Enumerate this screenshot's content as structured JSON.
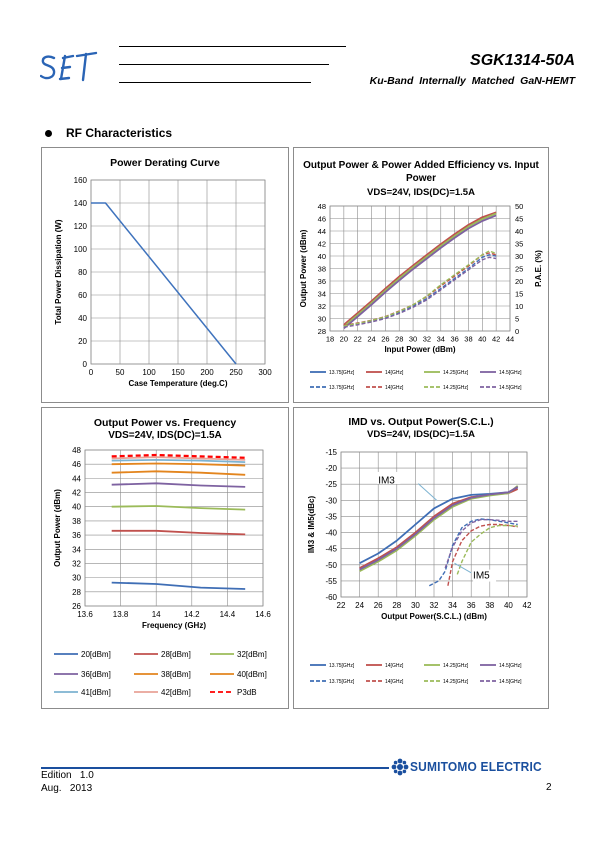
{
  "header": {
    "logo_text": "SET",
    "product": "SGK1314-50A",
    "description": "Ku-Band  Internally  Matched  GaN-HEMT"
  },
  "section_title": "RF Characteristics",
  "footer": {
    "edition_label": "Edition",
    "edition_value": "1.0",
    "date_month": "Aug.",
    "date_year": "2013",
    "brand": "SUMITOMO ELECTRIC",
    "page_number": "2"
  },
  "colors": {
    "c1": "#3f6eb5",
    "c2": "#c0504d",
    "c3": "#9bbb59",
    "c4": "#7e62a1",
    "c5": "#e3851e",
    "c6": "#7db3d1",
    "c7": "#e8a297",
    "c8": "#ff0000",
    "brand": "#1a4f9e"
  },
  "chart_data": [
    {
      "type": "line",
      "title": "Power Derating Curve",
      "xlabel": "Case Temperature (deg.C)",
      "ylabel": "Total Power Dissipation (W)",
      "xlim": [
        0,
        300
      ],
      "ylim": [
        0,
        160
      ],
      "xticks": [
        0,
        50,
        100,
        150,
        200,
        250,
        300
      ],
      "yticks": [
        0,
        20,
        40,
        60,
        80,
        100,
        120,
        140,
        160
      ],
      "series": [
        {
          "x": [
            0,
            25,
            250
          ],
          "y": [
            140,
            140,
            0
          ]
        }
      ]
    },
    {
      "type": "line",
      "title": "Output Power & Power Added Efficiency vs. Input Power",
      "subtitle": "VDS=24V, IDS(DC)=1.5A",
      "xlabel": "Input Power (dBm)",
      "ylabel": "Output Power (dBm)",
      "y2label": "P.A.E. (%)",
      "xlim": [
        18,
        44
      ],
      "ylim": [
        28,
        48
      ],
      "y2lim": [
        0,
        50
      ],
      "xticks": [
        18,
        20,
        22,
        24,
        26,
        28,
        30,
        32,
        34,
        36,
        38,
        40,
        42,
        44
      ],
      "yticks": [
        28,
        30,
        32,
        34,
        36,
        38,
        40,
        42,
        44,
        46,
        48
      ],
      "y2ticks": [
        0,
        5,
        10,
        15,
        20,
        25,
        30,
        35,
        40,
        45,
        50
      ],
      "legend": [
        "13.75[GHz]",
        "14[GHz]",
        "14.25[GHz]",
        "14.5[GHz]",
        "13.75[GHz]",
        "14[GHz]",
        "14.25[GHz]",
        "14.5[GHz]"
      ],
      "series": [
        {
          "name": "13.75[GHz]",
          "axis": "left",
          "x": [
            20,
            22,
            24,
            26,
            28,
            30,
            32,
            34,
            36,
            38,
            40,
            42
          ],
          "y": [
            28.8,
            30.7,
            32.6,
            34.6,
            36.5,
            38.3,
            40.0,
            41.7,
            43.3,
            44.8,
            46.0,
            46.9
          ]
        },
        {
          "name": "14[GHz]",
          "axis": "left",
          "x": [
            20,
            22,
            24,
            26,
            28,
            30,
            32,
            34,
            36,
            38,
            40,
            42
          ],
          "y": [
            29.0,
            30.9,
            32.8,
            34.8,
            36.7,
            38.5,
            40.2,
            41.9,
            43.5,
            45.0,
            46.2,
            47.0
          ]
        },
        {
          "name": "14.25[GHz]",
          "axis": "left",
          "x": [
            20,
            22,
            24,
            26,
            28,
            30,
            32,
            34,
            36,
            38,
            40,
            42
          ],
          "y": [
            28.7,
            30.6,
            32.5,
            34.5,
            36.4,
            38.2,
            39.9,
            41.6,
            43.2,
            44.7,
            45.9,
            46.8
          ]
        },
        {
          "name": "14.5[GHz]",
          "axis": "left",
          "x": [
            20,
            22,
            24,
            26,
            28,
            30,
            32,
            34,
            36,
            38,
            40,
            42
          ],
          "y": [
            28.4,
            30.3,
            32.2,
            34.2,
            36.1,
            37.9,
            39.6,
            41.3,
            42.9,
            44.4,
            45.6,
            46.5
          ]
        },
        {
          "name": "13.75[GHz]",
          "axis": "right",
          "x": [
            20,
            22,
            24,
            26,
            28,
            30,
            32,
            34,
            36,
            38,
            40,
            41,
            42
          ],
          "y": [
            2,
            3,
            4,
            5.5,
            7.5,
            10,
            13,
            17,
            21,
            25,
            29.5,
            30.5,
            30
          ]
        },
        {
          "name": "14[GHz]",
          "axis": "right",
          "x": [
            20,
            22,
            24,
            26,
            28,
            30,
            32,
            34,
            36,
            38,
            40,
            41,
            42
          ],
          "y": [
            2.2,
            3.2,
            4.3,
            5.8,
            8,
            10.5,
            13.8,
            18,
            22,
            26,
            30.5,
            31.2,
            30.5
          ]
        },
        {
          "name": "14.25[GHz]",
          "axis": "right",
          "x": [
            20,
            22,
            24,
            26,
            28,
            30,
            32,
            34,
            36,
            38,
            40,
            41,
            42
          ],
          "y": [
            2,
            3,
            4.2,
            5.7,
            7.8,
            10.5,
            14,
            18.5,
            22.5,
            26.5,
            30.5,
            32,
            31
          ]
        },
        {
          "name": "14.5[GHz]",
          "axis": "right",
          "x": [
            20,
            22,
            24,
            26,
            28,
            30,
            32,
            34,
            36,
            38,
            40,
            41,
            42
          ],
          "y": [
            1.5,
            2.5,
            3.6,
            5,
            7,
            9.5,
            12.5,
            16.5,
            20.5,
            24.5,
            28.5,
            29.5,
            29
          ]
        }
      ]
    },
    {
      "type": "line",
      "title": "Output Power vs. Frequency",
      "subtitle": "VDS=24V, IDS(DC)=1.5A",
      "xlabel": "Frequency (GHz)",
      "ylabel": "Output Power (dBm)",
      "xlim": [
        13.6,
        14.6
      ],
      "ylim": [
        26,
        48
      ],
      "xticks": [
        13.6,
        13.8,
        14.0,
        14.2,
        14.4,
        14.6
      ],
      "yticks": [
        26,
        28,
        30,
        32,
        34,
        36,
        38,
        40,
        42,
        44,
        46,
        48
      ],
      "legend": [
        "20[dBm]",
        "28[dBm]",
        "32[dBm]",
        "36[dBm]",
        "38[dBm]",
        "40[dBm]",
        "41[dBm]",
        "42[dBm]",
        "P3dB"
      ],
      "series": [
        {
          "name": "20[dBm]",
          "x": [
            13.75,
            14.0,
            14.25,
            14.5
          ],
          "y": [
            29.3,
            29.1,
            28.6,
            28.4
          ]
        },
        {
          "name": "28[dBm]",
          "x": [
            13.75,
            14.0,
            14.25,
            14.5
          ],
          "y": [
            36.6,
            36.6,
            36.3,
            36.1
          ]
        },
        {
          "name": "32[dBm]",
          "x": [
            13.75,
            14.0,
            14.25,
            14.5
          ],
          "y": [
            40.0,
            40.1,
            39.8,
            39.6
          ]
        },
        {
          "name": "36[dBm]",
          "x": [
            13.75,
            14.0,
            14.25,
            14.5
          ],
          "y": [
            43.1,
            43.3,
            43.0,
            42.8
          ]
        },
        {
          "name": "38[dBm]",
          "x": [
            13.75,
            14.0,
            14.25,
            14.5
          ],
          "y": [
            44.8,
            45.0,
            44.8,
            44.5
          ]
        },
        {
          "name": "40[dBm]",
          "x": [
            13.75,
            14.0,
            14.25,
            14.5
          ],
          "y": [
            46.0,
            46.1,
            46.0,
            45.8
          ]
        },
        {
          "name": "41[dBm]",
          "x": [
            13.75,
            14.0,
            14.25,
            14.5
          ],
          "y": [
            46.5,
            46.6,
            46.5,
            46.3
          ]
        },
        {
          "name": "42[dBm]",
          "x": [
            13.75,
            14.0,
            14.25,
            14.5
          ],
          "y": [
            46.8,
            47.0,
            46.8,
            46.6
          ]
        },
        {
          "name": "P3dB",
          "x": [
            13.75,
            14.0,
            14.25,
            14.5
          ],
          "y": [
            47.1,
            47.3,
            47.1,
            46.9
          ]
        }
      ]
    },
    {
      "type": "line",
      "title": "IMD vs. Output Power(S.C.L.)",
      "subtitle": "VDS=24V, IDS(DC)=1.5A",
      "xlabel": "Output Power(S.C.L.) (dBm)",
      "ylabel": "IM3 & IM5(dBc)",
      "xlim": [
        22,
        42
      ],
      "ylim": [
        -60,
        -15
      ],
      "xticks": [
        22,
        24,
        26,
        28,
        30,
        32,
        34,
        36,
        38,
        40,
        42
      ],
      "yticks": [
        -60,
        -55,
        -50,
        -45,
        -40,
        -35,
        -30,
        -25,
        -20,
        -15
      ],
      "annotations": [
        "IM3",
        "IM5"
      ],
      "legend": [
        "13.75[GHz]",
        "14[GHz]",
        "14.25[GHz]",
        "14.5[GHz]",
        "13.75[GHz]",
        "14[GHz]",
        "14.25[GHz]",
        "14.5[GHz]"
      ],
      "series": [
        {
          "name": "13.75[GHz]",
          "x": [
            24,
            26,
            28,
            30,
            32,
            34,
            36,
            38,
            40,
            41
          ],
          "y": [
            -49.5,
            -46.5,
            -42.5,
            -37.5,
            -32.5,
            -29.5,
            -28.3,
            -28.0,
            -27.5,
            -26.0
          ]
        },
        {
          "name": "14[GHz]",
          "x": [
            24,
            26,
            28,
            30,
            32,
            34,
            36,
            38,
            40,
            41
          ],
          "y": [
            -51,
            -48,
            -44.5,
            -40,
            -35,
            -31,
            -29,
            -28.3,
            -27.8,
            -26.5
          ]
        },
        {
          "name": "14.25[GHz]",
          "x": [
            24,
            26,
            28,
            30,
            32,
            34,
            36,
            38,
            40,
            41
          ],
          "y": [
            -52,
            -49,
            -45.5,
            -41,
            -36,
            -32,
            -29.5,
            -28.5,
            -27.8,
            -25.5
          ]
        },
        {
          "name": "14.5[GHz]",
          "x": [
            24,
            26,
            28,
            30,
            32,
            34,
            36,
            38,
            40,
            41
          ],
          "y": [
            -51.5,
            -48.5,
            -45,
            -40.5,
            -35.5,
            -31.5,
            -29.2,
            -28.2,
            -27.5,
            -25.8
          ]
        },
        {
          "name": "13.75[GHz]",
          "x": [
            31.5,
            32.5,
            33.2,
            34,
            35,
            36,
            37,
            38,
            39,
            40,
            41
          ],
          "y": [
            -56.5,
            -55,
            -52,
            -44,
            -38.5,
            -36.5,
            -35.8,
            -36,
            -36.5,
            -37,
            -37.5
          ]
        },
        {
          "name": "14[GHz]",
          "x": [
            33.5,
            34,
            35,
            36,
            37,
            38,
            39,
            40,
            41
          ],
          "y": [
            -56.5,
            -49,
            -42.5,
            -39.5,
            -38,
            -37.5,
            -37.5,
            -37.8,
            -38.2
          ]
        },
        {
          "name": "14.25[GHz]",
          "x": [
            34.5,
            35,
            36,
            37,
            38,
            39,
            40,
            41
          ],
          "y": [
            -53,
            -49,
            -43,
            -40.5,
            -38.5,
            -37.8,
            -37.8,
            -38
          ]
        },
        {
          "name": "14.5[GHz]",
          "x": [
            33.2,
            34,
            35,
            36,
            37,
            38,
            39,
            40,
            41
          ],
          "y": [
            -51,
            -44.5,
            -39.5,
            -37,
            -36,
            -36,
            -36.2,
            -36.5,
            -36.5
          ]
        }
      ]
    }
  ]
}
